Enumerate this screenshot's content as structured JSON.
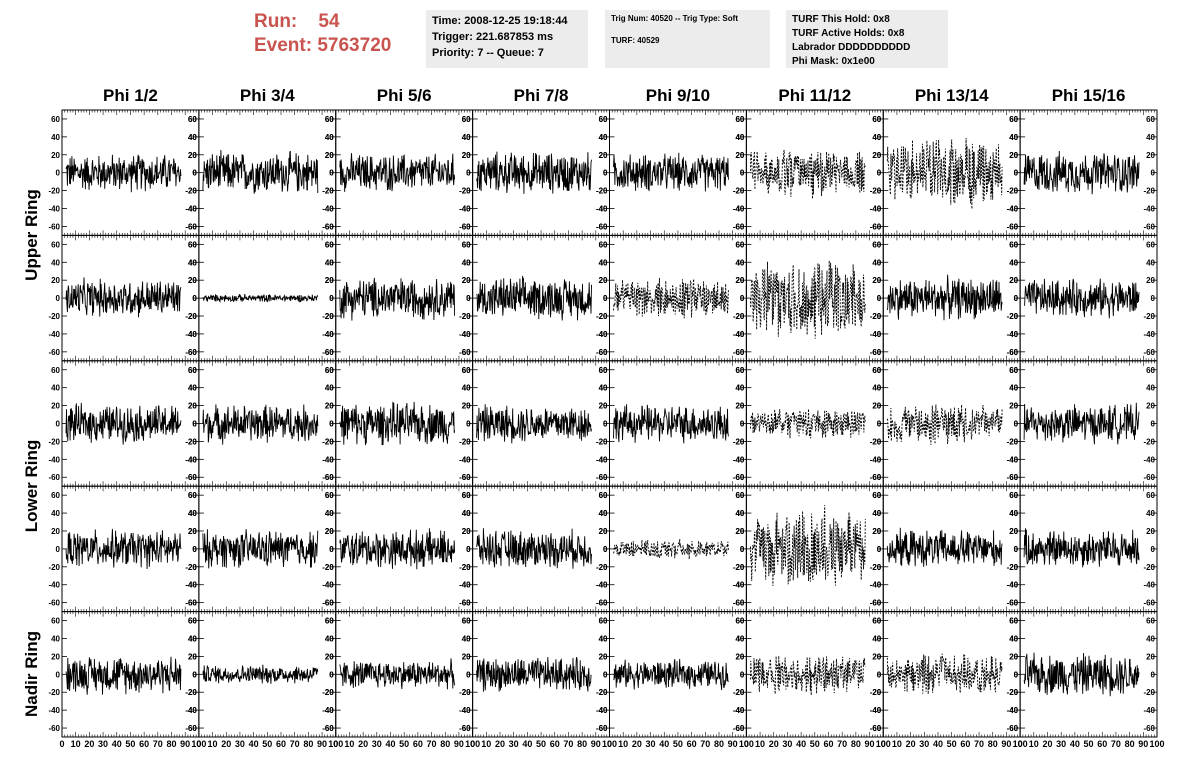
{
  "header": {
    "run_label": "Run:",
    "run_value": "54",
    "event_label": "Event:",
    "event_value": "5763720",
    "time": "Time: 2008-12-25 19:18:44",
    "trigger": "Trigger: 221.687853 ms",
    "priority": "Priority: 7 -- Queue: 7",
    "trig_num": "Trig Num: 40520 -- Trig Type: Soft",
    "turf": "TURF: 40529",
    "turf_this_hold": "TURF This Hold: 0x8",
    "turf_active_holds": "TURF Active Holds: 0x8",
    "labrador": "Labrador DDDDDDDDDD",
    "phi_mask": "Phi Mask: 0x1e00"
  },
  "chart_data": {
    "type": "line",
    "columns": [
      "Phi 1/2",
      "Phi 3/4",
      "Phi 5/6",
      "Phi 7/8",
      "Phi 9/10",
      "Phi 11/12",
      "Phi 13/14",
      "Phi 15/16"
    ],
    "rows": [
      "Upper Ring",
      "Upper Ring",
      "Lower Ring",
      "Lower Ring",
      "Nadir Ring"
    ],
    "row_labels": [
      "Upper Ring",
      "Lower Ring",
      "Nadir Ring"
    ],
    "xlim": [
      0,
      100
    ],
    "ylim": [
      -70,
      70
    ],
    "x_ticks": [
      "0",
      "10",
      "20",
      "30",
      "40",
      "50",
      "60",
      "70",
      "80",
      "90",
      "100"
    ],
    "y_ticks": [
      "60",
      "40",
      "20",
      "0",
      "-20",
      "-40",
      "-60"
    ],
    "amplitude": [
      [
        20,
        22,
        20,
        22,
        20,
        25,
        35,
        22
      ],
      [
        20,
        4,
        22,
        22,
        20,
        40,
        22,
        20
      ],
      [
        20,
        20,
        22,
        20,
        20,
        15,
        20,
        20
      ],
      [
        20,
        20,
        20,
        20,
        10,
        40,
        20,
        20
      ],
      [
        20,
        10,
        15,
        18,
        15,
        20,
        20,
        22
      ]
    ],
    "dashed": [
      [
        false,
        false,
        false,
        false,
        false,
        true,
        true,
        false
      ],
      [
        false,
        false,
        false,
        false,
        true,
        true,
        false,
        false
      ],
      [
        false,
        false,
        false,
        false,
        false,
        true,
        true,
        false
      ],
      [
        false,
        false,
        false,
        false,
        true,
        true,
        false,
        false
      ],
      [
        false,
        false,
        false,
        false,
        false,
        true,
        true,
        false
      ]
    ],
    "colors": {
      "trace": "#000000",
      "run_text": "#c9544f",
      "box_bg": "#ececec"
    }
  }
}
